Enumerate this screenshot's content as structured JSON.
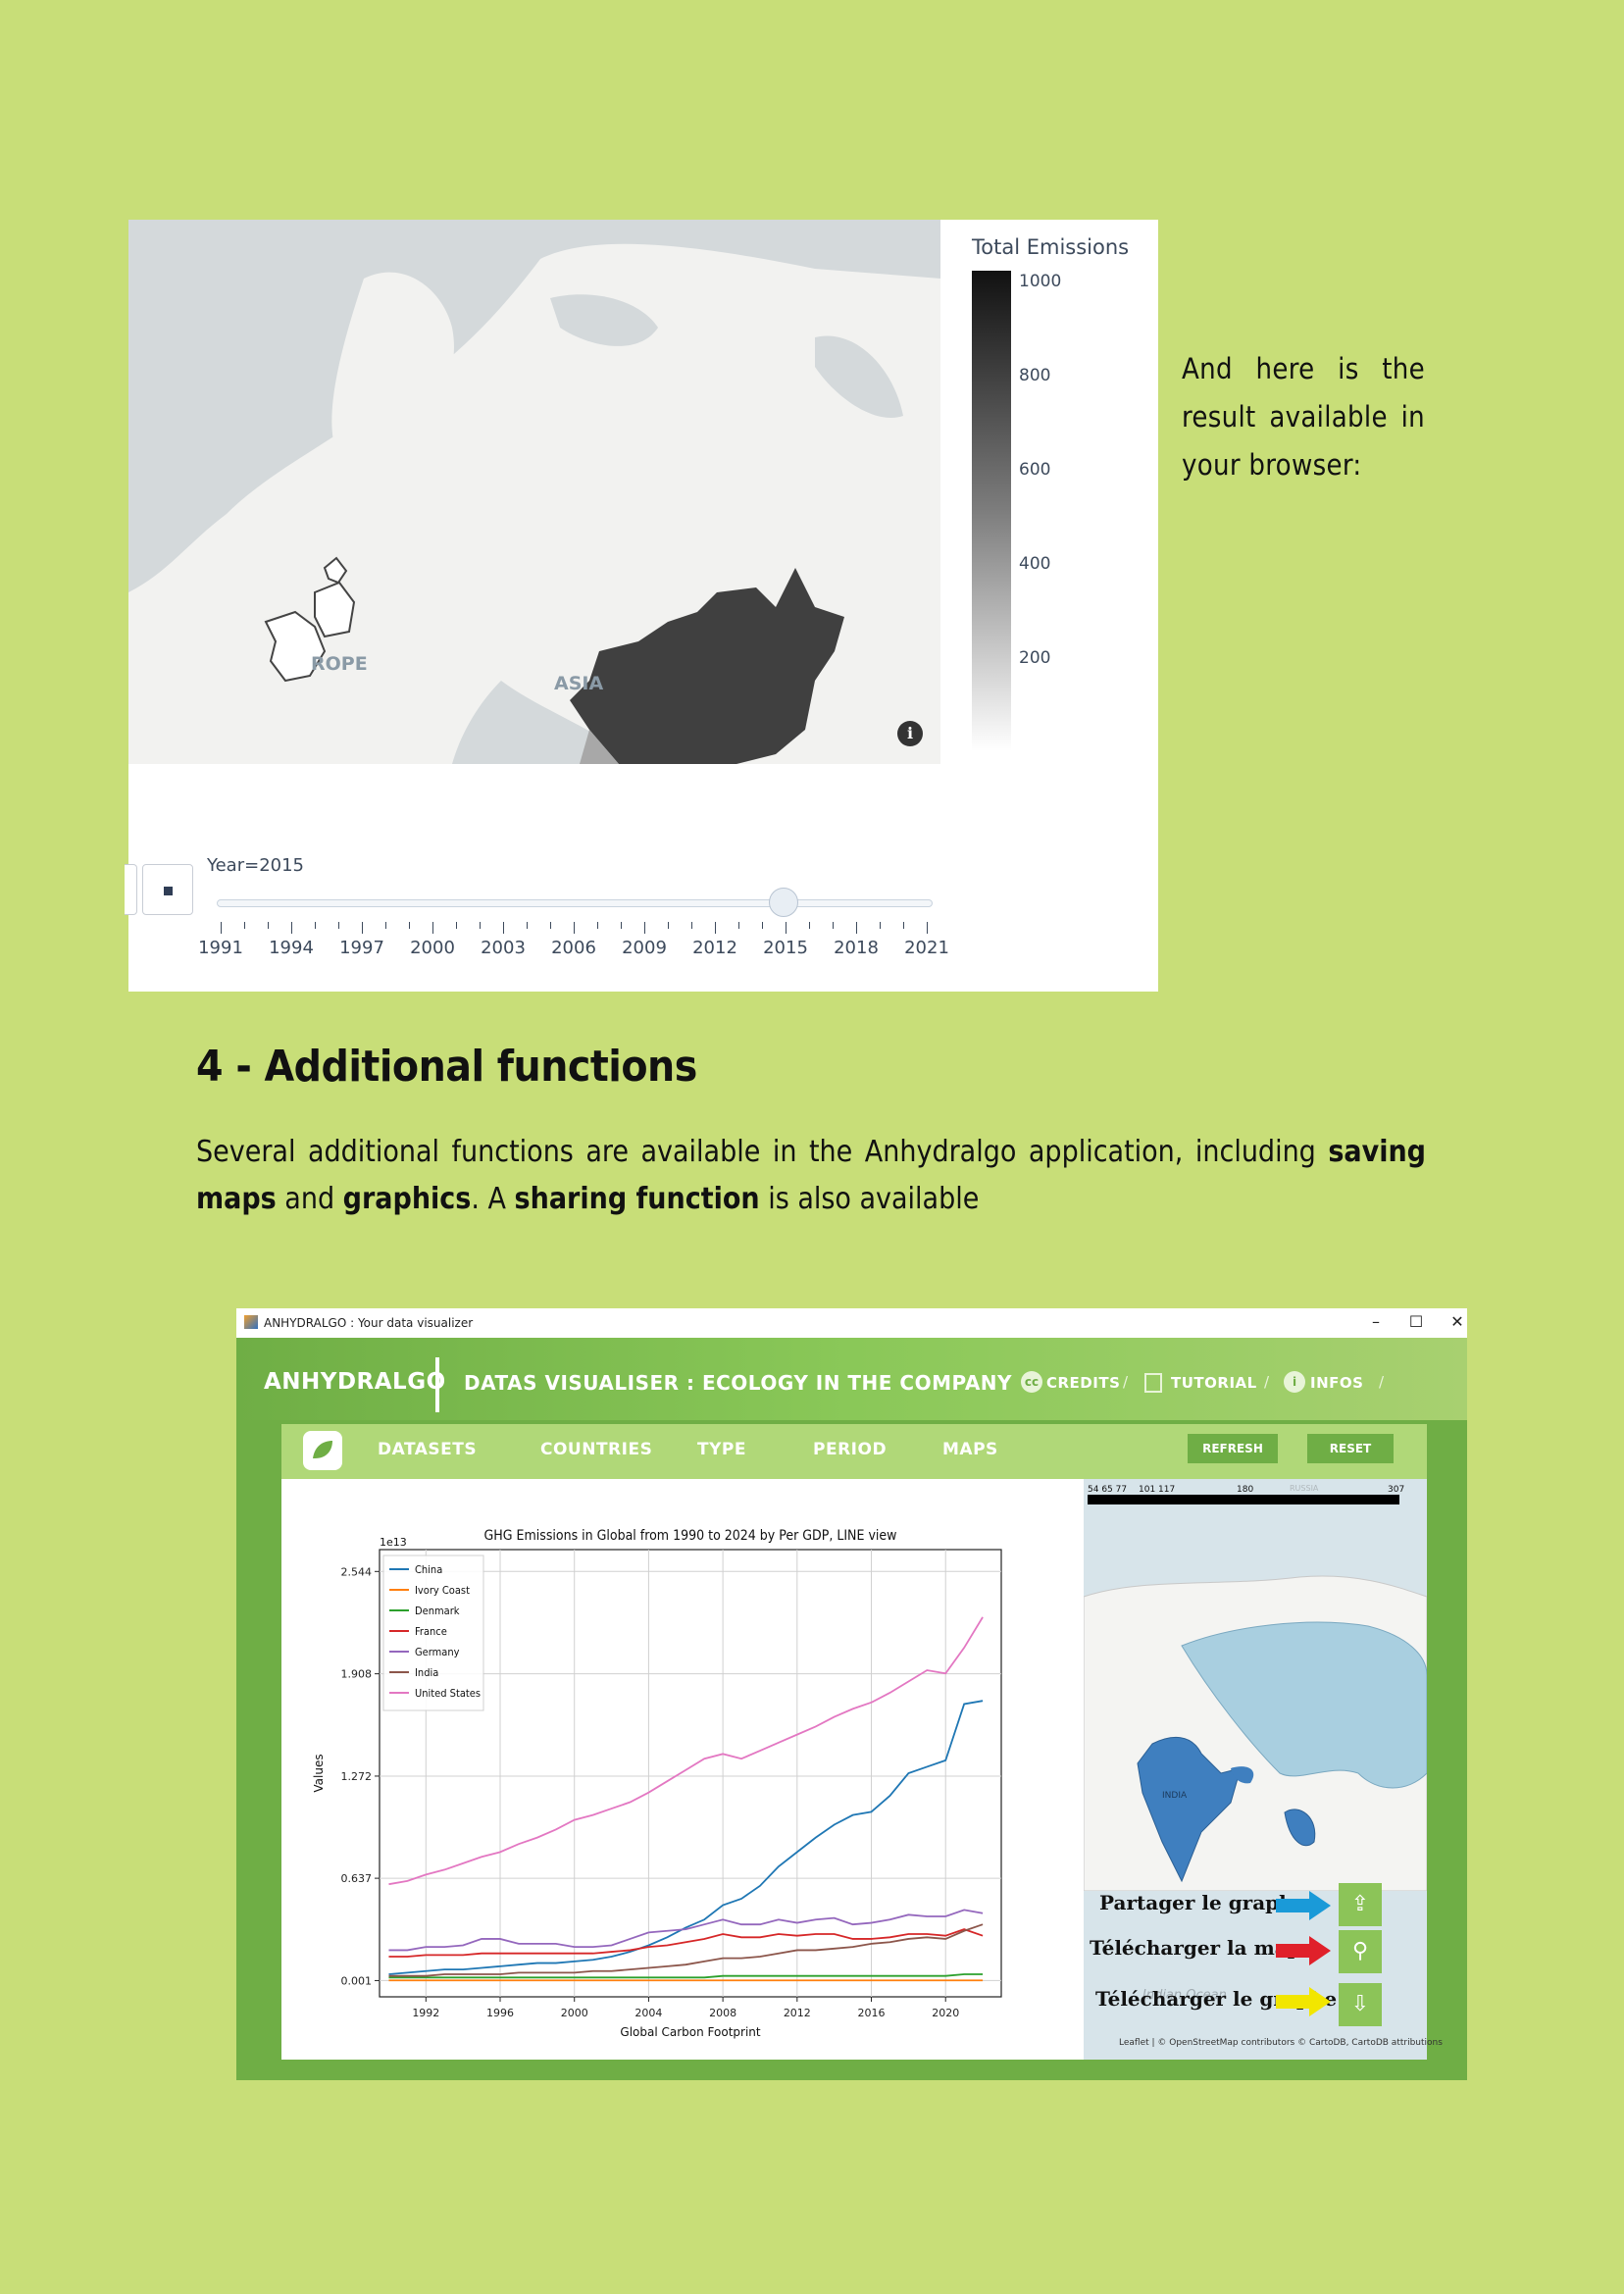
{
  "figure1": {
    "colorbar_title": "Total Emissions",
    "colorbar_ticks": [
      "1000",
      "800",
      "600",
      "400",
      "200"
    ],
    "map_labels": [
      "ROPE",
      "ASIA"
    ],
    "slider_label": "Year=2015",
    "slider_ticks": [
      "1991",
      "1994",
      "1997",
      "2000",
      "2003",
      "2006",
      "2009",
      "2012",
      "2015",
      "2018",
      "2021"
    ],
    "slider_value": 2015
  },
  "side_text": "And here is the result available in your browser:",
  "section": {
    "heading": "4 - Additional functions",
    "para_1": "Several additional functions are available in the Anhydralgo application, including ",
    "bold_1": "saving maps",
    "para_2": " and ",
    "bold_2": "graphics",
    "para_3": ". A ",
    "bold_3": "sharing function",
    "para_4": " is also available"
  },
  "app_window": {
    "title": "ANHYDRALGO : Your data visualizer",
    "brand": "ANHYDRALGO",
    "subtitle": "DATAS VISUALISER : ECOLOGY IN THE COMPANY",
    "links": {
      "credits": "CREDITS",
      "tutorial": "TUTORIAL",
      "infos": "INFOS"
    },
    "nav": [
      "DATASETS",
      "COUNTRIES",
      "TYPE",
      "PERIOD",
      "MAPS"
    ],
    "buttons": {
      "refresh": "REFRESH",
      "reset": "RESET"
    },
    "stats_numbers": [
      "54 65 77",
      "101 117",
      "180",
      "307"
    ],
    "map_labels": {
      "india": "INDIA",
      "russia": "RUSSIA",
      "ocean": "Indian Ocean"
    },
    "callouts": {
      "share": "Partager le graphe",
      "download_map": "Télécharger la map",
      "download_graph": "Télécharger le graphe"
    },
    "attribution": "Leaflet | © OpenStreetMap contributors © CartoDB, CartoDB attributions",
    "colors": {
      "share_arrow": "#1a9ad8",
      "map_arrow": "#e0202a",
      "graph_arrow": "#f2e600"
    }
  },
  "chart_data": {
    "type": "line",
    "title": "GHG Emissions in Global from 1990 to 2024 by Per GDP, LINE view",
    "xlabel": "Global Carbon Footprint",
    "ylabel": "Values",
    "y_multiplier_label": "1e13",
    "x_ticks": [
      1992,
      1996,
      2000,
      2004,
      2008,
      2012,
      2016,
      2020
    ],
    "y_ticks": [
      "0.001",
      "0.637",
      "1.272",
      "1.908",
      "2.544"
    ],
    "xlim": [
      1989.5,
      2023
    ],
    "ylim": [
      -0.1,
      2.68
    ],
    "x": [
      1990,
      1991,
      1992,
      1993,
      1994,
      1995,
      1996,
      1997,
      1998,
      1999,
      2000,
      2001,
      2002,
      2003,
      2004,
      2005,
      2006,
      2007,
      2008,
      2009,
      2010,
      2011,
      2012,
      2013,
      2014,
      2015,
      2016,
      2017,
      2018,
      2019,
      2020,
      2021,
      2022
    ],
    "series": [
      {
        "name": "China",
        "color": "#1f77b4",
        "values": [
          0.04,
          0.05,
          0.06,
          0.07,
          0.07,
          0.08,
          0.09,
          0.1,
          0.11,
          0.11,
          0.12,
          0.13,
          0.15,
          0.18,
          0.22,
          0.27,
          0.33,
          0.38,
          0.47,
          0.51,
          0.59,
          0.71,
          0.8,
          0.89,
          0.97,
          1.03,
          1.05,
          1.15,
          1.29,
          1.33,
          1.37,
          1.72,
          1.74
        ]
      },
      {
        "name": "Ivory Coast",
        "color": "#ff7f0e",
        "values": [
          0.002,
          0.002,
          0.002,
          0.002,
          0.002,
          0.002,
          0.002,
          0.002,
          0.002,
          0.002,
          0.002,
          0.002,
          0.002,
          0.002,
          0.002,
          0.002,
          0.002,
          0.002,
          0.002,
          0.002,
          0.002,
          0.002,
          0.002,
          0.002,
          0.002,
          0.002,
          0.002,
          0.002,
          0.002,
          0.002,
          0.002,
          0.002,
          0.002
        ]
      },
      {
        "name": "Denmark",
        "color": "#2ca02c",
        "values": [
          0.02,
          0.02,
          0.02,
          0.02,
          0.02,
          0.02,
          0.02,
          0.02,
          0.02,
          0.02,
          0.02,
          0.02,
          0.02,
          0.02,
          0.02,
          0.02,
          0.02,
          0.02,
          0.03,
          0.03,
          0.03,
          0.03,
          0.03,
          0.03,
          0.03,
          0.03,
          0.03,
          0.03,
          0.03,
          0.03,
          0.03,
          0.04,
          0.04
        ]
      },
      {
        "name": "France",
        "color": "#d62728",
        "values": [
          0.15,
          0.15,
          0.16,
          0.16,
          0.16,
          0.17,
          0.17,
          0.17,
          0.17,
          0.17,
          0.17,
          0.17,
          0.18,
          0.19,
          0.21,
          0.22,
          0.24,
          0.26,
          0.29,
          0.27,
          0.27,
          0.29,
          0.28,
          0.29,
          0.29,
          0.26,
          0.26,
          0.27,
          0.29,
          0.29,
          0.28,
          0.32,
          0.28
        ]
      },
      {
        "name": "Germany",
        "color": "#9467bd",
        "values": [
          0.19,
          0.19,
          0.21,
          0.21,
          0.22,
          0.26,
          0.26,
          0.23,
          0.23,
          0.23,
          0.21,
          0.21,
          0.22,
          0.26,
          0.3,
          0.31,
          0.32,
          0.35,
          0.38,
          0.35,
          0.35,
          0.38,
          0.36,
          0.38,
          0.39,
          0.35,
          0.36,
          0.38,
          0.41,
          0.4,
          0.4,
          0.44,
          0.42
        ]
      },
      {
        "name": "India",
        "color": "#8c564b",
        "values": [
          0.03,
          0.03,
          0.03,
          0.04,
          0.04,
          0.04,
          0.04,
          0.05,
          0.05,
          0.05,
          0.05,
          0.06,
          0.06,
          0.07,
          0.08,
          0.09,
          0.1,
          0.12,
          0.14,
          0.14,
          0.15,
          0.17,
          0.19,
          0.19,
          0.2,
          0.21,
          0.23,
          0.24,
          0.26,
          0.27,
          0.26,
          0.31,
          0.35
        ]
      },
      {
        "name": "United States",
        "color": "#e377c2",
        "values": [
          0.6,
          0.62,
          0.66,
          0.69,
          0.73,
          0.77,
          0.8,
          0.85,
          0.89,
          0.94,
          1.0,
          1.03,
          1.07,
          1.11,
          1.17,
          1.24,
          1.31,
          1.38,
          1.41,
          1.38,
          1.43,
          1.48,
          1.53,
          1.58,
          1.64,
          1.69,
          1.73,
          1.79,
          1.86,
          1.93,
          1.91,
          2.07,
          2.26
        ]
      }
    ]
  }
}
